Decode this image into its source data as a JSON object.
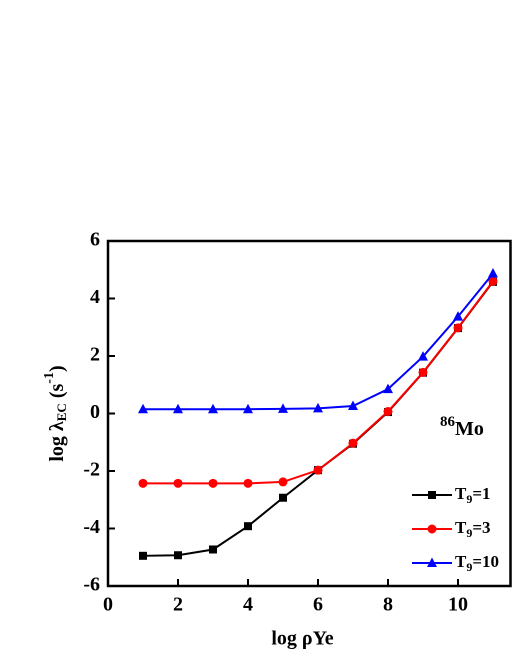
{
  "chart_data": {
    "type": "line",
    "x_label": "log ρYe",
    "y_label": "log λEC (s-1)",
    "annotation": "86Mo",
    "x": [
      1,
      2,
      3,
      4,
      5,
      6,
      7,
      8,
      9,
      10,
      11
    ],
    "series": [
      {
        "name": "T9=1",
        "color": "#000000",
        "marker": "square",
        "values": [
          -4.95,
          -4.93,
          -4.73,
          -3.92,
          -2.93,
          -1.97,
          -1.05,
          0.05,
          1.42,
          2.97,
          4.58
        ]
      },
      {
        "name": "T9=3",
        "color": "#ff0000",
        "marker": "circle",
        "values": [
          -2.43,
          -2.43,
          -2.43,
          -2.43,
          -2.38,
          -1.97,
          -1.03,
          0.07,
          1.43,
          2.98,
          4.6
        ]
      },
      {
        "name": "T9=10",
        "color": "#0000ff",
        "marker": "triangle",
        "values": [
          0.15,
          0.15,
          0.15,
          0.15,
          0.16,
          0.18,
          0.26,
          0.85,
          1.98,
          3.37,
          4.87
        ]
      }
    ],
    "xlim": [
      0,
      11.5
    ],
    "xticks": [
      0,
      2,
      4,
      6,
      8,
      10
    ],
    "ylim": [
      -6,
      6
    ],
    "yticks": [
      -6,
      -4,
      -2,
      0,
      2,
      4,
      6
    ],
    "legend": "lower right"
  }
}
